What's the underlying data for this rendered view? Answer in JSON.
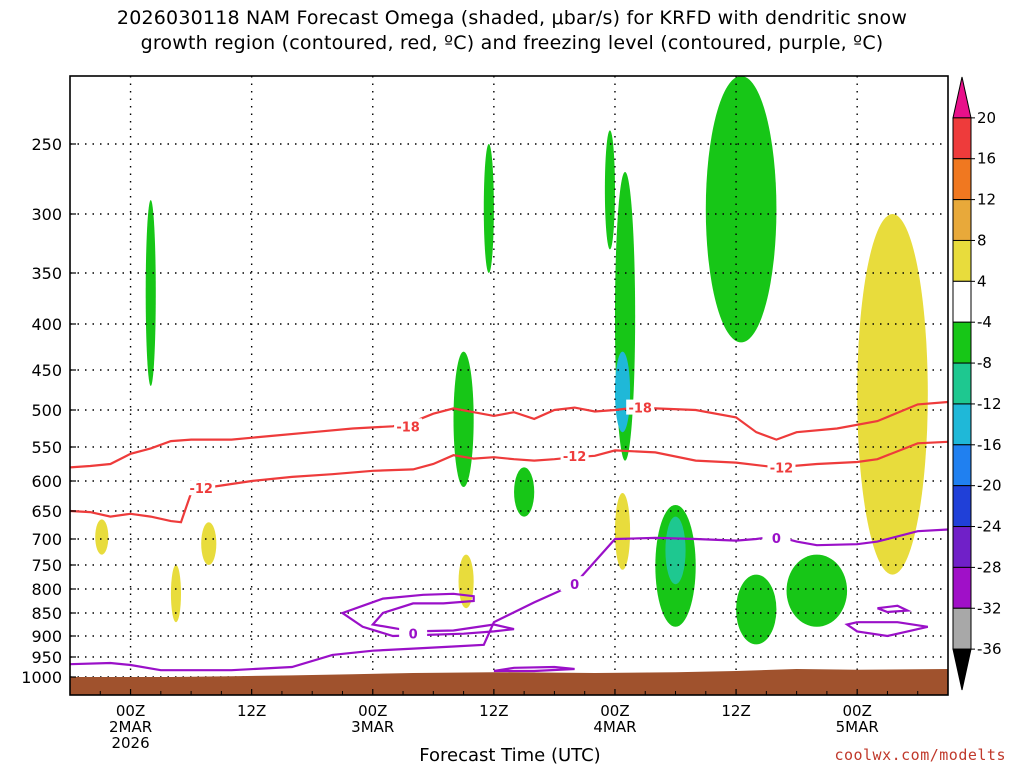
{
  "title_line1": "2026030118 NAM Forecast Omega (shaded, μbar/s) for KRFD with dendritic snow",
  "title_line2": "growth region (contoured, red, ºC) and freezing level (contoured, purple, ºC)",
  "credit": "coolwx.com/modelts",
  "chart_data": {
    "type": "heatmap",
    "title": "2026030118 NAM Forecast Omega (shaded, μbar/s) for KRFD with dendritic snow growth region (contoured, red, ºC) and freezing level (contoured, purple, ºC)",
    "xlabel": "Forecast Time (UTC)",
    "ylabel": "",
    "x_range_hours": [
      18,
      105
    ],
    "x_ticks": [
      {
        "hour": 24,
        "label": "00Z",
        "sub1": "2MAR",
        "sub2": "2026"
      },
      {
        "hour": 36,
        "label": "12Z",
        "sub1": "",
        "sub2": ""
      },
      {
        "hour": 48,
        "label": "00Z",
        "sub1": "3MAR",
        "sub2": ""
      },
      {
        "hour": 60,
        "label": "12Z",
        "sub1": "",
        "sub2": ""
      },
      {
        "hour": 72,
        "label": "00Z",
        "sub1": "4MAR",
        "sub2": ""
      },
      {
        "hour": 84,
        "label": "12Z",
        "sub1": "",
        "sub2": ""
      },
      {
        "hour": 96,
        "label": "00Z",
        "sub1": "5MAR",
        "sub2": ""
      }
    ],
    "y_ticks": [
      "250",
      "300",
      "350",
      "400",
      "450",
      "500",
      "550",
      "600",
      "650",
      "700",
      "750",
      "800",
      "850",
      "900",
      "950",
      "1000"
    ],
    "y_levels": [
      250,
      300,
      350,
      400,
      450,
      500,
      550,
      600,
      650,
      700,
      750,
      800,
      850,
      900,
      950,
      1000
    ],
    "colorbar": {
      "labels": [
        "20",
        "16",
        "12",
        "8",
        "4",
        "-4",
        "-8",
        "-12",
        "-16",
        "-20",
        "-24",
        "-28",
        "-32",
        "-36"
      ],
      "colors": [
        "#e8108a",
        "#ee3b3b",
        "#f07820",
        "#e8a93a",
        "#e8dc3c",
        "#ffffff",
        "#17c617",
        "#1ec890",
        "#1fb8d8",
        "#2080f0",
        "#2040d8",
        "#7020c8",
        "#a010c8",
        "#a8a8a8",
        "#000000"
      ]
    },
    "contour_labels": {
      "dgz_minus18": "-18",
      "dgz_minus12": "-12",
      "freezing": "0"
    },
    "series": [
      {
        "name": "-18",
        "points": [
          [
            18,
            580
          ],
          [
            20,
            578
          ],
          [
            22,
            575
          ],
          [
            24,
            560
          ],
          [
            26,
            552
          ],
          [
            28,
            542
          ],
          [
            30,
            540
          ],
          [
            34,
            540
          ],
          [
            38,
            535
          ],
          [
            42,
            530
          ],
          [
            46,
            525
          ],
          [
            50,
            522
          ],
          [
            52,
            516
          ],
          [
            54,
            505
          ],
          [
            56,
            498
          ],
          [
            58,
            503
          ],
          [
            60,
            508
          ],
          [
            62,
            503
          ],
          [
            64,
            512
          ],
          [
            66,
            500
          ],
          [
            68,
            497
          ],
          [
            70,
            502
          ],
          [
            72,
            500
          ],
          [
            74,
            497
          ],
          [
            76,
            498
          ],
          [
            80,
            500
          ],
          [
            84,
            510
          ],
          [
            86,
            530
          ],
          [
            88,
            540
          ],
          [
            90,
            530
          ],
          [
            94,
            525
          ],
          [
            98,
            515
          ],
          [
            102,
            493
          ],
          [
            105,
            490
          ]
        ]
      },
      {
        "name": "-12",
        "points": [
          [
            18,
            650
          ],
          [
            20,
            652
          ],
          [
            22,
            660
          ],
          [
            24,
            655
          ],
          [
            26,
            660
          ],
          [
            28,
            668
          ],
          [
            29,
            670
          ],
          [
            30,
            620
          ],
          [
            32,
            610
          ],
          [
            36,
            600
          ],
          [
            40,
            594
          ],
          [
            44,
            590
          ],
          [
            48,
            585
          ],
          [
            52,
            583
          ],
          [
            54,
            575
          ],
          [
            56,
            562
          ],
          [
            58,
            567
          ],
          [
            60,
            565
          ],
          [
            62,
            568
          ],
          [
            64,
            570
          ],
          [
            66,
            568
          ],
          [
            68,
            565
          ],
          [
            70,
            563
          ],
          [
            72,
            555
          ],
          [
            76,
            558
          ],
          [
            80,
            570
          ],
          [
            84,
            573
          ],
          [
            88,
            580
          ],
          [
            92,
            575
          ],
          [
            96,
            572
          ],
          [
            98,
            568
          ],
          [
            102,
            545
          ],
          [
            105,
            543
          ]
        ]
      },
      {
        "name": "0",
        "points": [
          [
            18,
            968
          ],
          [
            22,
            965
          ],
          [
            24,
            970
          ],
          [
            27,
            983
          ],
          [
            30,
            983
          ],
          [
            34,
            983
          ],
          [
            40,
            975
          ],
          [
            44,
            945
          ],
          [
            48,
            935
          ],
          [
            52,
            930
          ],
          [
            56,
            925
          ],
          [
            59,
            921
          ],
          [
            60,
            870
          ],
          [
            64,
            828
          ],
          [
            68,
            790
          ],
          [
            72,
            700
          ],
          [
            76,
            698
          ],
          [
            80,
            700
          ],
          [
            84,
            703
          ],
          [
            86,
            700
          ],
          [
            88,
            695
          ],
          [
            90,
            705
          ],
          [
            92,
            712
          ],
          [
            96,
            710
          ],
          [
            98,
            705
          ],
          [
            102,
            686
          ],
          [
            105,
            683
          ]
        ]
      }
    ],
    "omega_regions": [
      {
        "value": -6,
        "hours_range": [
          25.5,
          26.5
        ],
        "p_range": [
          290,
          470
        ]
      },
      {
        "value": 6,
        "hours_range": [
          20.5,
          21.8
        ],
        "p_range": [
          665,
          730
        ]
      },
      {
        "value": 6,
        "hours_range": [
          28,
          29
        ],
        "p_range": [
          750,
          870
        ]
      },
      {
        "value": 6,
        "hours_range": [
          31,
          32.5
        ],
        "p_range": [
          670,
          750
        ]
      },
      {
        "value": -6,
        "hours_range": [
          59,
          60
        ],
        "p_range": [
          250,
          350
        ]
      },
      {
        "value": -6,
        "hours_range": [
          56,
          58
        ],
        "p_range": [
          430,
          610
        ]
      },
      {
        "value": 6,
        "hours_range": [
          56.5,
          58
        ],
        "p_range": [
          730,
          840
        ]
      },
      {
        "value": -6,
        "hours_range": [
          71,
          72
        ],
        "p_range": [
          240,
          330
        ]
      },
      {
        "value": -6,
        "hours_range": [
          72,
          74
        ],
        "p_range": [
          270,
          570
        ]
      },
      {
        "value": -13,
        "hours_range": [
          72,
          73.5
        ],
        "p_range": [
          430,
          530
        ]
      },
      {
        "value": 6,
        "hours_range": [
          72,
          73.5
        ],
        "p_range": [
          620,
          760
        ]
      },
      {
        "value": -6,
        "hours_range": [
          76,
          80
        ],
        "p_range": [
          640,
          880
        ]
      },
      {
        "value": -11,
        "hours_range": [
          77,
          79
        ],
        "p_range": [
          660,
          790
        ]
      },
      {
        "value": -6,
        "hours_range": [
          81,
          88
        ],
        "p_range": [
          200,
          420
        ]
      },
      {
        "value": 6,
        "hours_range": [
          96,
          103
        ],
        "p_range": [
          300,
          770
        ]
      },
      {
        "value": -6,
        "hours_range": [
          84,
          88
        ],
        "p_range": [
          770,
          920
        ]
      },
      {
        "value": -6,
        "hours_range": [
          89,
          95
        ],
        "p_range": [
          730,
          880
        ]
      },
      {
        "value": -6,
        "hours_range": [
          62,
          64
        ],
        "p_range": [
          580,
          660
        ]
      }
    ]
  }
}
